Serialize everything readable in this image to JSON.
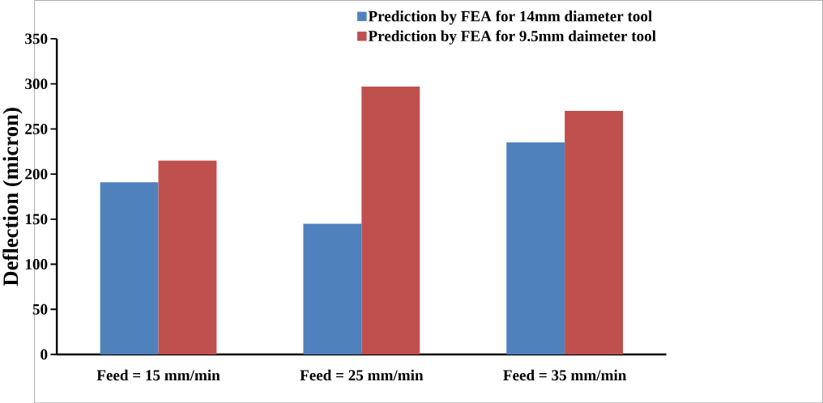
{
  "chart_data": {
    "type": "bar",
    "ylabel": "Deflection (micron)",
    "categories": [
      "Feed = 15 mm/min",
      "Feed = 25 mm/min",
      "Feed = 35 mm/min"
    ],
    "series": [
      {
        "name": "Prediction  by FEA for 14mm diameter tool",
        "color": "#4f81bd",
        "values": [
          191,
          145,
          235
        ]
      },
      {
        "name": "Prediction by FEA for 9.5mm daimeter tool",
        "color": "#c0504d",
        "values": [
          215,
          297,
          270
        ]
      }
    ],
    "ylim": [
      0,
      350
    ],
    "yticks": [
      0,
      50,
      100,
      150,
      200,
      250,
      300,
      350
    ],
    "grid": false,
    "legend": "top right"
  }
}
